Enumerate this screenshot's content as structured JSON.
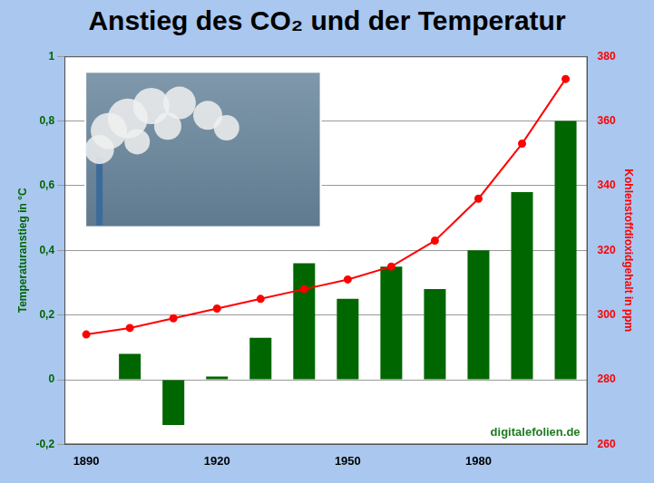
{
  "chart_data": {
    "type": "bar",
    "title": "Anstieg des CO₂ und der Temperatur",
    "y_label": "Temperaturanstieg in °C",
    "y2_label": "Kohlenstoffdioxidgehalt in ppm",
    "annotations": [
      "digitalefolien.de"
    ],
    "categories": [
      1890,
      null,
      null,
      1920,
      null,
      null,
      1950,
      null,
      null,
      1980,
      null,
      null
    ],
    "series": [
      {
        "type": "bar",
        "color": "#006600",
        "axis": "y",
        "values": [
          null,
          0.08,
          -0.14,
          0.01,
          0.13,
          0.36,
          0.25,
          0.35,
          0.28,
          0.4,
          0.58,
          0.8
        ]
      },
      {
        "type": "line",
        "color": "#ff0000",
        "axis": "y2",
        "marker": "circle",
        "line_style": "solid",
        "values": [
          294,
          296,
          299,
          302,
          305,
          308,
          311,
          315,
          323,
          336,
          353,
          373
        ]
      }
    ],
    "ylim": [
      -0.2,
      1
    ],
    "yticks": [
      {
        "value": -0.2,
        "label": "-0,2"
      },
      0,
      {
        "value": 0.2,
        "label": "0,2"
      },
      {
        "value": 0.4,
        "label": "0,4"
      },
      {
        "value": 0.6,
        "label": "0,6"
      },
      {
        "value": 0.8,
        "label": "0,8"
      },
      1
    ],
    "y2lim": [
      260,
      380
    ],
    "y2ticks": [
      260,
      280,
      300,
      320,
      340,
      360,
      380
    ],
    "grid": true
  }
}
